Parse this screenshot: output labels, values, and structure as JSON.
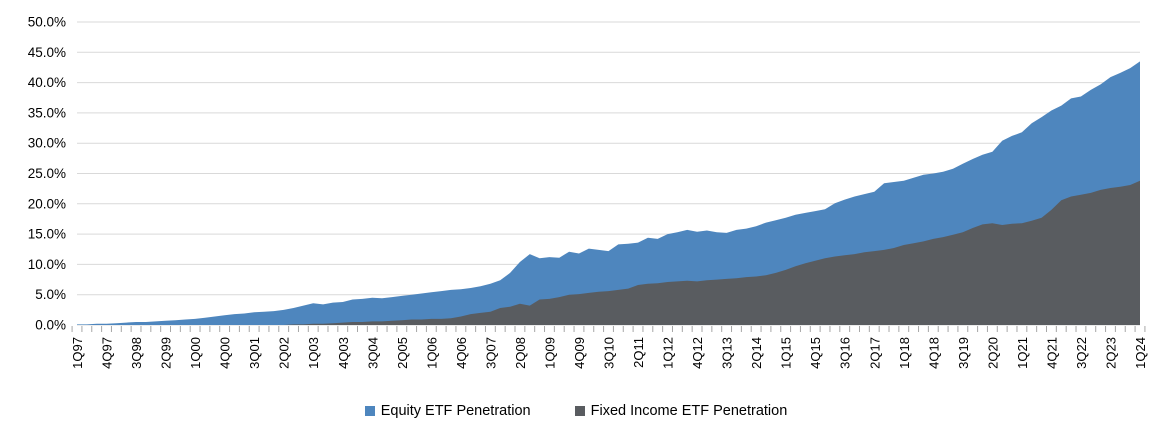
{
  "chart_data": {
    "type": "area",
    "title": "",
    "xlabel": "",
    "ylabel": "",
    "ylim": [
      0,
      50
    ],
    "ytick_step": 5,
    "y_tick_labels": [
      "0.0%",
      "5.0%",
      "10.0%",
      "15.0%",
      "20.0%",
      "25.0%",
      "30.0%",
      "35.0%",
      "40.0%",
      "45.0%",
      "50.0%"
    ],
    "xtick_label_every": 3,
    "grid": "horizontal",
    "legend_position": "bottom",
    "gridline_color": "#D9D9D9",
    "tick_color": "#A6A6A6",
    "label_color": "#000000",
    "categories": [
      "1Q97",
      "2Q97",
      "3Q97",
      "4Q97",
      "1Q98",
      "2Q98",
      "3Q98",
      "4Q98",
      "1Q99",
      "2Q99",
      "3Q99",
      "4Q99",
      "1Q00",
      "2Q00",
      "3Q00",
      "4Q00",
      "1Q01",
      "2Q01",
      "3Q01",
      "4Q01",
      "1Q02",
      "2Q02",
      "3Q02",
      "4Q02",
      "1Q03",
      "2Q03",
      "3Q03",
      "4Q03",
      "1Q04",
      "2Q04",
      "3Q04",
      "4Q04",
      "1Q05",
      "2Q05",
      "3Q05",
      "4Q05",
      "1Q06",
      "2Q06",
      "3Q06",
      "4Q06",
      "1Q07",
      "2Q07",
      "3Q07",
      "4Q07",
      "1Q08",
      "2Q08",
      "3Q08",
      "4Q08",
      "1Q09",
      "2Q09",
      "3Q09",
      "4Q09",
      "1Q10",
      "2Q10",
      "3Q10",
      "4Q10",
      "1Q11",
      "2Q11",
      "3Q11",
      "4Q11",
      "1Q12",
      "2Q12",
      "3Q12",
      "4Q12",
      "1Q13",
      "2Q13",
      "3Q13",
      "4Q13",
      "1Q14",
      "2Q14",
      "3Q14",
      "4Q14",
      "1Q15",
      "2Q15",
      "3Q15",
      "4Q15",
      "1Q16",
      "2Q16",
      "3Q16",
      "4Q16",
      "1Q17",
      "2Q17",
      "3Q17",
      "4Q17",
      "1Q18",
      "2Q18",
      "3Q18",
      "4Q18",
      "1Q19",
      "2Q19",
      "3Q19",
      "4Q19",
      "1Q20",
      "2Q20",
      "3Q20",
      "4Q20",
      "1Q21",
      "2Q21",
      "3Q21",
      "4Q21",
      "1Q22",
      "2Q22",
      "3Q22",
      "4Q22",
      "1Q23",
      "2Q23",
      "3Q23",
      "4Q23",
      "1Q24"
    ],
    "series": [
      {
        "name": "Equity ETF Penetration",
        "color": "#4E86BE",
        "values": [
          0.1,
          0.1,
          0.2,
          0.2,
          0.3,
          0.4,
          0.5,
          0.5,
          0.6,
          0.7,
          0.8,
          0.9,
          1.0,
          1.2,
          1.4,
          1.6,
          1.8,
          1.9,
          2.1,
          2.2,
          2.3,
          2.5,
          2.8,
          3.2,
          3.6,
          3.4,
          3.7,
          3.8,
          4.2,
          4.3,
          4.5,
          4.4,
          4.6,
          4.8,
          5.0,
          5.2,
          5.4,
          5.6,
          5.8,
          5.9,
          6.1,
          6.4,
          6.8,
          7.4,
          8.6,
          10.4,
          11.7,
          11.0,
          11.2,
          11.1,
          12.1,
          11.8,
          12.6,
          12.4,
          12.2,
          13.3,
          13.4,
          13.6,
          14.4,
          14.2,
          15.0,
          15.3,
          15.7,
          15.4,
          15.6,
          15.3,
          15.2,
          15.7,
          15.9,
          16.3,
          16.9,
          17.3,
          17.7,
          18.2,
          18.5,
          18.8,
          19.1,
          20.1,
          20.7,
          21.2,
          21.6,
          22.0,
          23.4,
          23.6,
          23.8,
          24.3,
          24.8,
          25.0,
          25.3,
          25.8,
          26.6,
          27.4,
          28.1,
          28.6,
          30.4,
          31.2,
          31.8,
          33.3,
          34.3,
          35.4,
          36.2,
          37.4,
          37.7,
          38.8,
          39.7,
          40.9,
          41.6,
          42.4,
          43.5
        ]
      },
      {
        "name": "Fixed Income ETF Penetration",
        "color": "#595C60",
        "values": [
          0,
          0,
          0,
          0,
          0,
          0,
          0,
          0,
          0,
          0,
          0,
          0,
          0,
          0,
          0,
          0,
          0,
          0,
          0,
          0,
          0,
          0,
          0.1,
          0.1,
          0.2,
          0.2,
          0.3,
          0.4,
          0.5,
          0.5,
          0.6,
          0.6,
          0.7,
          0.8,
          0.9,
          0.9,
          1.0,
          1.0,
          1.1,
          1.4,
          1.8,
          2.0,
          2.2,
          2.8,
          3.0,
          3.5,
          3.2,
          4.2,
          4.3,
          4.6,
          5.0,
          5.1,
          5.3,
          5.5,
          5.6,
          5.8,
          6.0,
          6.6,
          6.8,
          6.9,
          7.1,
          7.2,
          7.3,
          7.2,
          7.4,
          7.5,
          7.6,
          7.7,
          7.9,
          8.0,
          8.2,
          8.6,
          9.1,
          9.7,
          10.2,
          10.6,
          11.0,
          11.3,
          11.5,
          11.7,
          12.0,
          12.2,
          12.4,
          12.7,
          13.2,
          13.5,
          13.8,
          14.2,
          14.5,
          14.9,
          15.3,
          16.0,
          16.6,
          16.8,
          16.5,
          16.7,
          16.8,
          17.2,
          17.7,
          19.0,
          20.6,
          21.2,
          21.5,
          21.8,
          22.3,
          22.6,
          22.8,
          23.1,
          23.8
        ]
      }
    ]
  },
  "legend": {
    "equity_label": "Equity ETF Penetration",
    "fixed_income_label": "Fixed Income ETF Penetration"
  }
}
